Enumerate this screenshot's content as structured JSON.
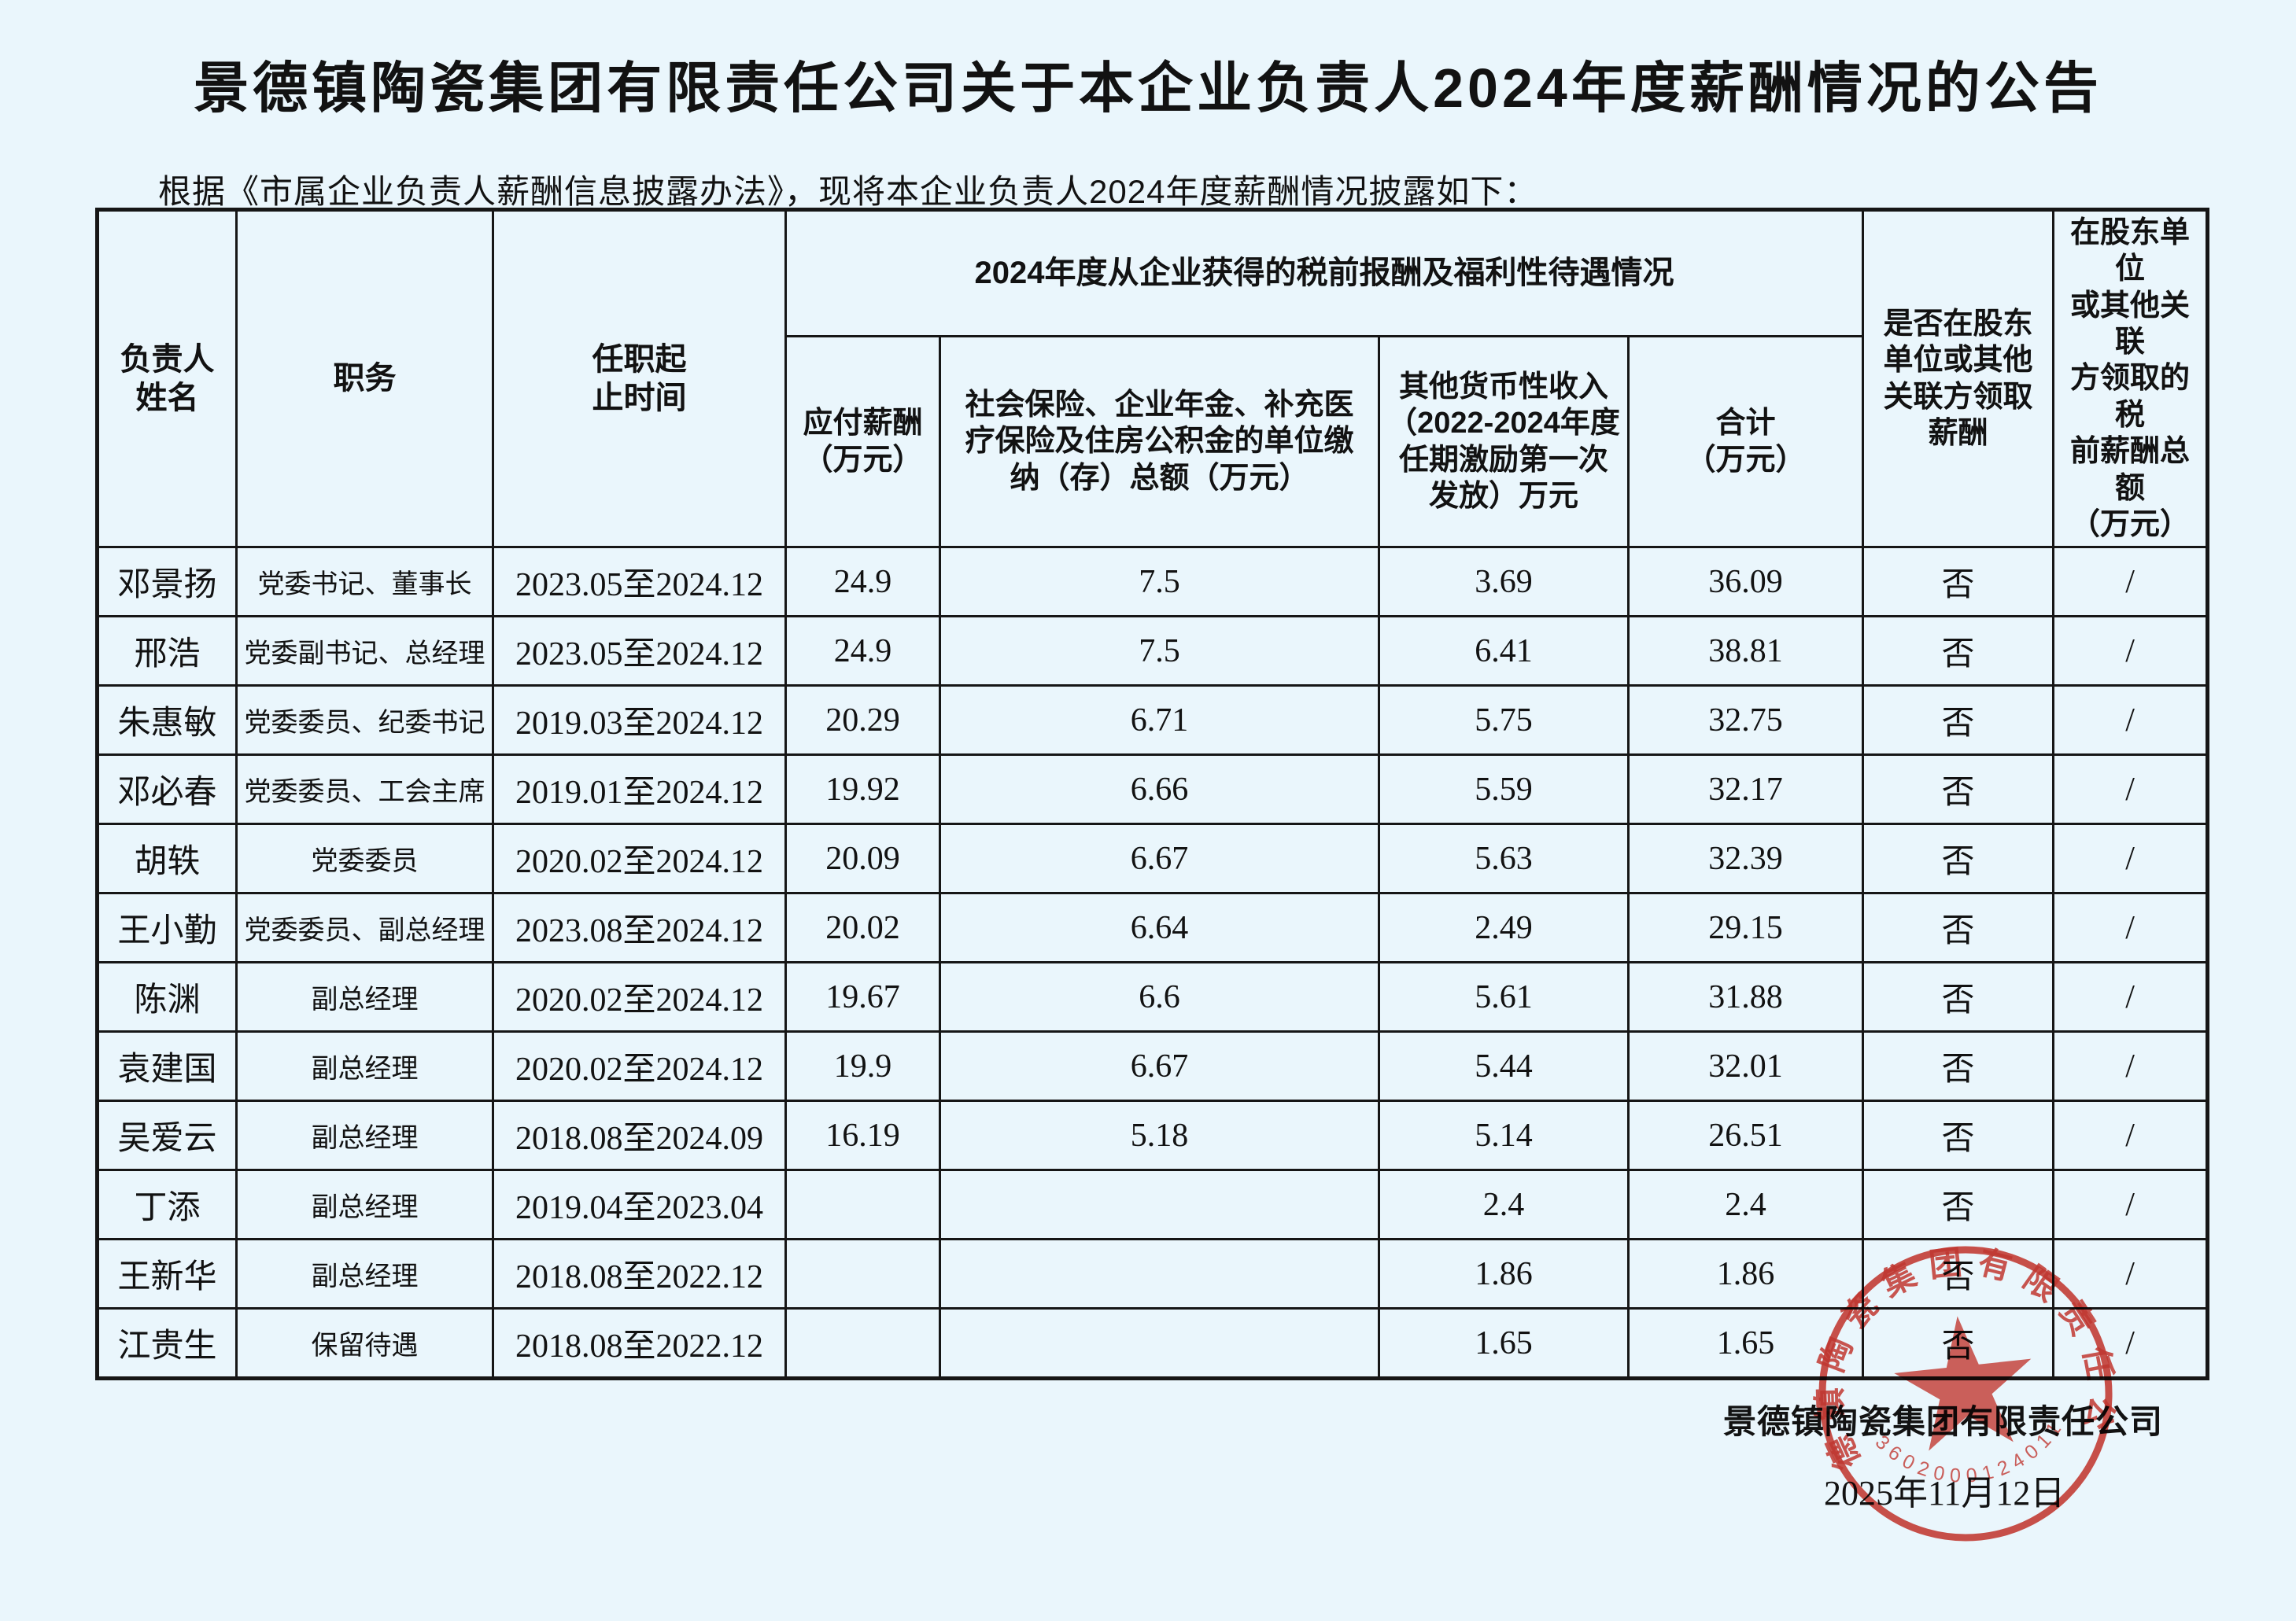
{
  "page": {
    "title": "景德镇陶瓷集团有限责任公司关于本企业负责人2024年度薪酬情况的公告",
    "intro": "根据《市属企业负责人薪酬信息披露办法》，现将本企业负责人2024年度薪酬情况披露如下：",
    "background_color": "#eaf6fc",
    "border_color": "#161616"
  },
  "table": {
    "headers": {
      "name": "负责人\n姓名",
      "position": "职务",
      "term": "任职起\n止时间",
      "group": "2024年度从企业获得的税前报酬及福利性待遇情况",
      "payable": "应付薪酬\n（万元）",
      "insurance": "社会保险、企业年金、补充医\n疗保险及住房公积金的单位缴\n纳（存）总额（万元）",
      "other_income": "其他货币性收入\n（2022-2024年度\n任期激励第一次\n发放）万元",
      "total": "合计\n（万元）",
      "related_party": "是否在股东\n单位或其他\n关联方领取\n薪酬",
      "related_amount": "在股东单位\n或其他关联\n方领取的税\n前薪酬总额\n（万元）"
    },
    "rows": [
      [
        "邓景扬",
        "党委书记、董事长",
        "2023.05至2024.12",
        "24.9",
        "7.5",
        "3.69",
        "36.09",
        "否",
        "/"
      ],
      [
        "邢浩",
        "党委副书记、总经理",
        "2023.05至2024.12",
        "24.9",
        "7.5",
        "6.41",
        "38.81",
        "否",
        "/"
      ],
      [
        "朱惠敏",
        "党委委员、纪委书记",
        "2019.03至2024.12",
        "20.29",
        "6.71",
        "5.75",
        "32.75",
        "否",
        "/"
      ],
      [
        "邓必春",
        "党委委员、工会主席",
        "2019.01至2024.12",
        "19.92",
        "6.66",
        "5.59",
        "32.17",
        "否",
        "/"
      ],
      [
        "胡轶",
        "党委委员",
        "2020.02至2024.12",
        "20.09",
        "6.67",
        "5.63",
        "32.39",
        "否",
        "/"
      ],
      [
        "王小勤",
        "党委委员、副总经理",
        "2023.08至2024.12",
        "20.02",
        "6.64",
        "2.49",
        "29.15",
        "否",
        "/"
      ],
      [
        "陈渊",
        "副总经理",
        "2020.02至2024.12",
        "19.67",
        "6.6",
        "5.61",
        "31.88",
        "否",
        "/"
      ],
      [
        "袁建国",
        "副总经理",
        "2020.02至2024.12",
        "19.9",
        "6.67",
        "5.44",
        "32.01",
        "否",
        "/"
      ],
      [
        "吴爱云",
        "副总经理",
        "2018.08至2024.09",
        "16.19",
        "5.18",
        "5.14",
        "26.51",
        "否",
        "/"
      ],
      [
        "丁添",
        "副总经理",
        "2019.04至2023.04",
        "",
        "",
        "2.4",
        "2.4",
        "否",
        "/"
      ],
      [
        "王新华",
        "副总经理",
        "2018.08至2022.12",
        "",
        "",
        "1.86",
        "1.86",
        "否",
        "/"
      ],
      [
        "江贵生",
        "保留待遇",
        "2018.08至2022.12",
        "",
        "",
        "1.65",
        "1.65",
        "否",
        "/"
      ]
    ]
  },
  "footer": {
    "company": "景德镇陶瓷集团有限责任公司",
    "date": "2025年11月12日",
    "stamp": {
      "ring_text": "景德镇陶瓷集团有限责任公司",
      "code": "3602000124011",
      "color": "#cf2a21"
    }
  }
}
